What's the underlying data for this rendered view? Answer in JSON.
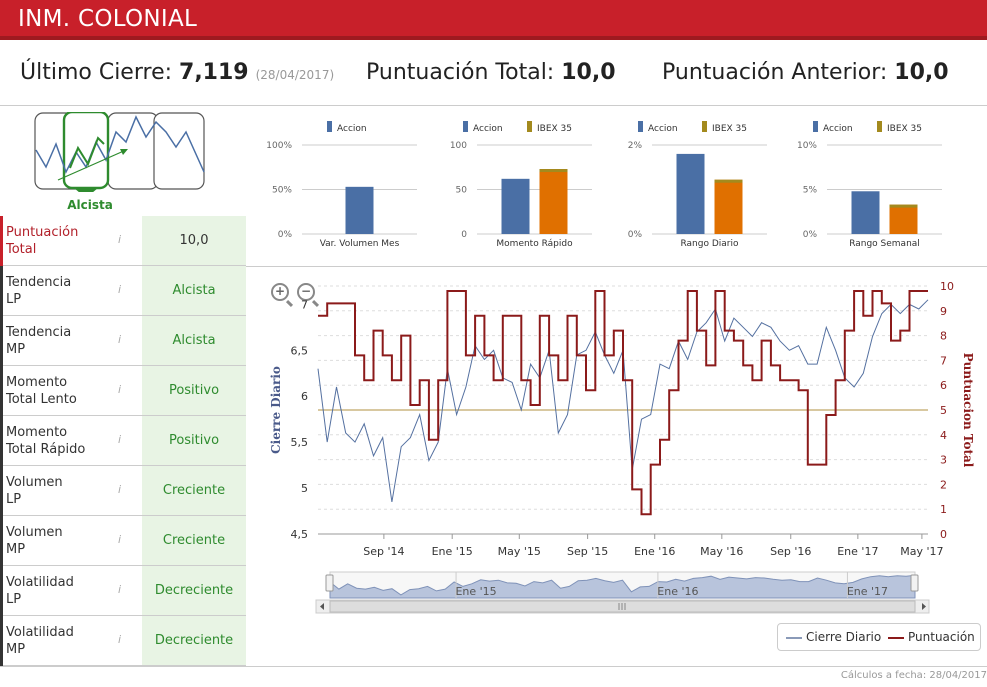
{
  "header": {
    "title": "INM. COLONIAL"
  },
  "summary": {
    "close_label": "Último Cierre:",
    "close_value": "7,119",
    "close_date": "(28/04/2017)",
    "score_label": "Puntuación Total:",
    "score_value": "10,0",
    "prev_label": "Puntuación Anterior:",
    "prev_value": "10,0"
  },
  "trend": {
    "label": "Alcista"
  },
  "indicators": [
    {
      "label1": "Puntuación",
      "label2": "Total",
      "value": "10,0"
    },
    {
      "label1": "Tendencia",
      "label2": "LP",
      "value": "Alcista"
    },
    {
      "label1": "Tendencia",
      "label2": "MP",
      "value": "Alcista"
    },
    {
      "label1": "Momento",
      "label2": "Total Lento",
      "value": "Positivo"
    },
    {
      "label1": "Momento",
      "label2": "Total Rápido",
      "value": "Positivo"
    },
    {
      "label1": "Volumen",
      "label2": "LP",
      "value": "Creciente"
    },
    {
      "label1": "Volumen",
      "label2": "MP",
      "value": "Creciente"
    },
    {
      "label1": "Volatilidad",
      "label2": "LP",
      "value": "Decreciente"
    },
    {
      "label1": "Volatilidad",
      "label2": "MP",
      "value": "Decreciente"
    }
  ],
  "info_icon": "i",
  "colors": {
    "accion": "#4a6fa5",
    "ibex": "#e07000",
    "ibex_legend": "#a38a1e",
    "cierre": "#5470a0",
    "puntuacion": "#8b1a1a",
    "header": "#c8202a",
    "value_bg": "#e8f4e4"
  },
  "chart_data": [
    {
      "type": "bar",
      "title": "Var. Volumen Mes",
      "legend": [
        "Accion"
      ],
      "yticks": [
        "0%",
        "50%",
        "100%"
      ],
      "ylim": [
        0,
        100
      ],
      "series": [
        {
          "name": "Accion",
          "values": [
            53
          ]
        }
      ]
    },
    {
      "type": "bar",
      "title": "Momento Rápido",
      "legend": [
        "Accion",
        "IBEX 35"
      ],
      "yticks": [
        "0",
        "50",
        "100"
      ],
      "ylim": [
        0,
        100
      ],
      "series": [
        {
          "name": "Accion",
          "values": [
            62
          ]
        },
        {
          "name": "IBEX 35",
          "values": [
            73
          ]
        }
      ]
    },
    {
      "type": "bar",
      "title": "Rango Diario",
      "legend": [
        "Accion",
        "IBEX 35"
      ],
      "yticks": [
        "0%",
        "2%"
      ],
      "ylim": [
        0,
        2
      ],
      "series": [
        {
          "name": "Accion",
          "values": [
            1.8
          ]
        },
        {
          "name": "IBEX 35",
          "values": [
            1.22
          ]
        }
      ]
    },
    {
      "type": "bar",
      "title": "Rango Semanal",
      "legend": [
        "Accion",
        "IBEX 35"
      ],
      "yticks": [
        "0%",
        "5%",
        "10%"
      ],
      "ylim": [
        0,
        10
      ],
      "series": [
        {
          "name": "Accion",
          "values": [
            4.8
          ]
        },
        {
          "name": "IBEX 35",
          "values": [
            3.3
          ]
        }
      ]
    },
    {
      "type": "line",
      "ylabel": "Cierre Diario",
      "y2label": "Puntuacion Total",
      "yticks": [
        "4,5",
        "5",
        "5,5",
        "6",
        "6,5",
        "7"
      ],
      "ylim": [
        4.5,
        7.2
      ],
      "y2ticks": [
        "0",
        "1",
        "2",
        "3",
        "4",
        "5",
        "6",
        "7",
        "8",
        "9",
        "10"
      ],
      "y2lim": [
        0,
        10
      ],
      "xticks": [
        "Sep '14",
        "Ene '15",
        "May '15",
        "Sep '15",
        "Ene '16",
        "May '16",
        "Sep '16",
        "Ene '17",
        "May '17"
      ],
      "xlim": [
        0,
        33
      ],
      "reference_line": 5.85,
      "series": [
        {
          "name": "Cierre Diario",
          "x": [
            0,
            0.5,
            1,
            1.5,
            2,
            2.5,
            3,
            3.5,
            4,
            4.5,
            5,
            5.5,
            6,
            6.5,
            7,
            7.5,
            8,
            8.5,
            9,
            9.5,
            10,
            10.5,
            11,
            11.5,
            12,
            12.5,
            13,
            13.5,
            14,
            14.5,
            15,
            15.5,
            16,
            16.5,
            17,
            17.5,
            18,
            18.5,
            19,
            19.5,
            20,
            20.5,
            21,
            21.5,
            22,
            22.5,
            23,
            23.5,
            24,
            24.5,
            25,
            25.5,
            26,
            26.5,
            27,
            27.5,
            28,
            28.5,
            29,
            29.5,
            30,
            30.5,
            31,
            31.5,
            32,
            32.5,
            33
          ],
          "values": [
            6.3,
            5.5,
            6.1,
            5.6,
            5.5,
            5.7,
            5.35,
            5.55,
            4.85,
            5.45,
            5.55,
            5.8,
            5.3,
            5.5,
            6.3,
            5.8,
            6.1,
            6.55,
            6.4,
            6.5,
            6.2,
            6.15,
            5.85,
            6.35,
            6.2,
            6.5,
            5.6,
            5.8,
            6.45,
            6.5,
            6.7,
            6.45,
            6.25,
            6.5,
            5.2,
            5.75,
            5.8,
            6.35,
            6.3,
            6.6,
            6.4,
            6.7,
            6.8,
            6.95,
            6.6,
            6.85,
            6.75,
            6.65,
            6.8,
            6.75,
            6.6,
            6.5,
            6.55,
            6.35,
            6.35,
            6.75,
            6.5,
            6.2,
            6.1,
            6.25,
            6.65,
            6.9,
            7.0,
            6.9,
            7.0,
            6.95,
            7.05
          ]
        },
        {
          "name": "Puntuación",
          "x": [
            0,
            0.5,
            1,
            1.5,
            2,
            2.5,
            3,
            3.5,
            4,
            4.5,
            5,
            5.5,
            6,
            6.5,
            7,
            7.5,
            8,
            8.5,
            9,
            9.5,
            10,
            10.5,
            11,
            11.5,
            12,
            12.5,
            13,
            13.5,
            14,
            14.5,
            15,
            15.5,
            16,
            16.5,
            17,
            17.5,
            18,
            18.5,
            19,
            19.5,
            20,
            20.5,
            21,
            21.5,
            22,
            22.5,
            23,
            23.5,
            24,
            24.5,
            25,
            25.5,
            26,
            26.5,
            27,
            27.5,
            28,
            28.5,
            29,
            29.5,
            30,
            30.5,
            31,
            31.5,
            32,
            32.5,
            33
          ],
          "values": [
            8.8,
            9.3,
            9.3,
            9.3,
            7.2,
            6.2,
            8.2,
            7.2,
            6.2,
            8.0,
            5.2,
            6.2,
            3.8,
            6.2,
            9.8,
            9.8,
            7.2,
            8.8,
            7.2,
            6.2,
            8.8,
            8.8,
            6.2,
            5.2,
            8.8,
            7.2,
            6.2,
            8.8,
            7.2,
            5.8,
            9.8,
            7.2,
            8.2,
            6.2,
            1.8,
            0.8,
            2.8,
            3.8,
            5.8,
            7.8,
            9.8,
            8.2,
            6.8,
            9.8,
            8.2,
            7.8,
            6.8,
            6.2,
            7.8,
            6.8,
            6.2,
            6.2,
            5.8,
            2.8,
            2.8,
            4.8,
            6.2,
            8.2,
            9.8,
            8.8,
            9.8,
            9.3,
            7.8,
            8.2,
            9.8,
            9.8,
            9.8
          ]
        }
      ]
    }
  ],
  "navigator": {
    "labels": [
      "Ene '15",
      "Ene '16",
      "Ene '17"
    ]
  },
  "legend": {
    "cierre": "Cierre Diario",
    "puntuacion": "Puntuación"
  },
  "footer": "Cálculos a fecha: 28/04/2017"
}
